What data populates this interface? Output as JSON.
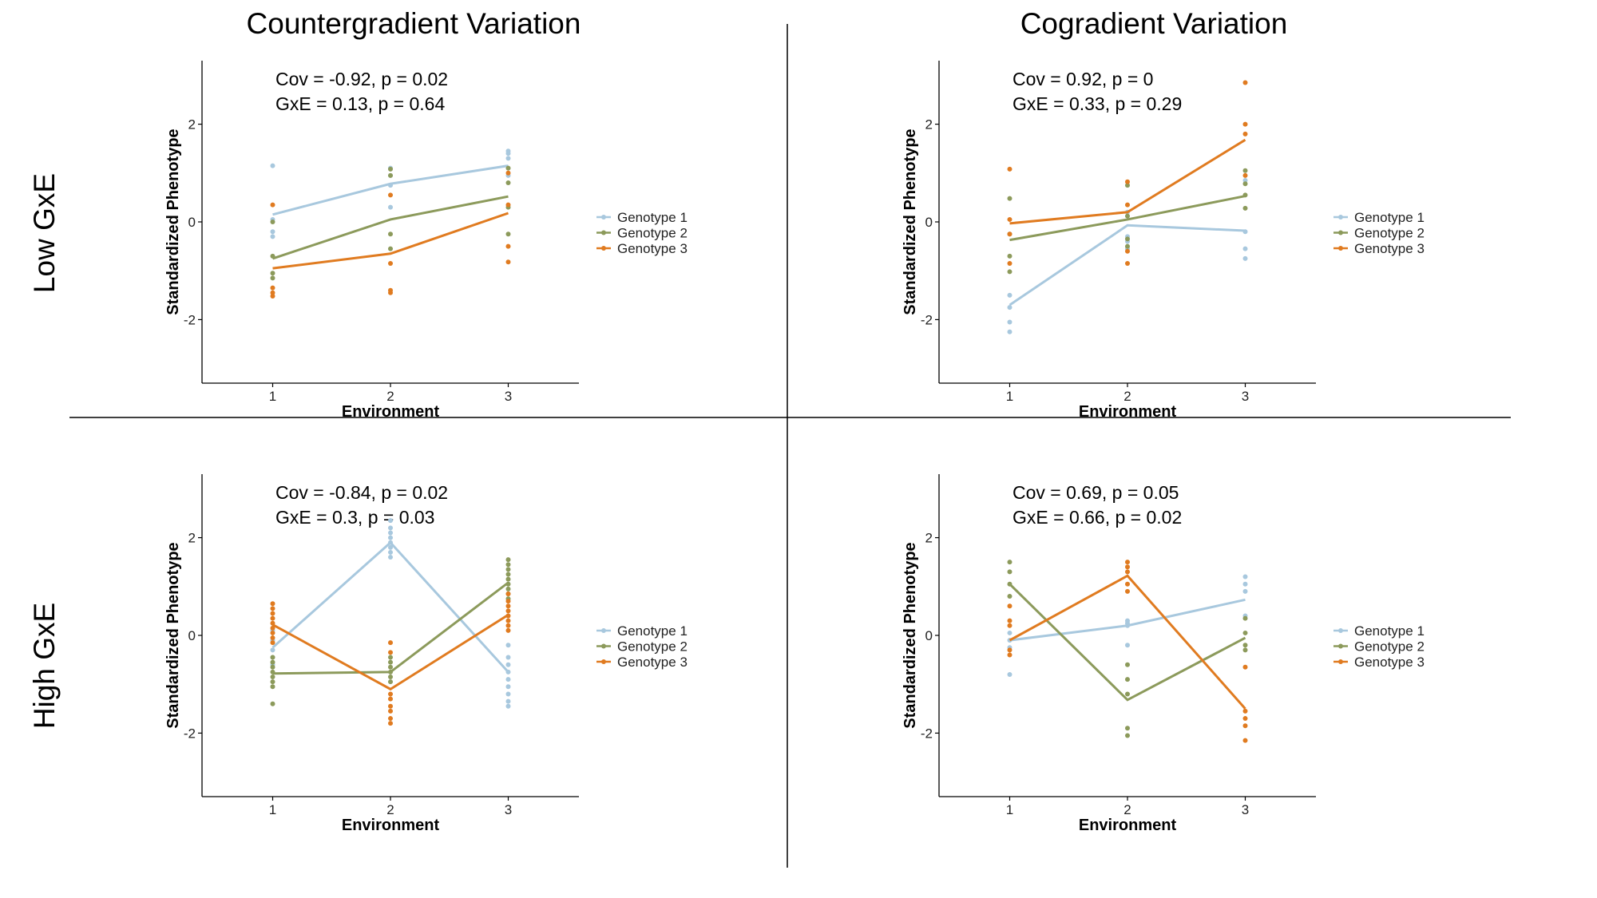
{
  "colors": {
    "genotype_1": "#a8c8de",
    "genotype_2": "#8c9a5b",
    "genotype_3": "#e07b20",
    "axis": "#000000",
    "divider": "#000000"
  },
  "column_titles": [
    "Countergradient Variation",
    "Cogradient Variation"
  ],
  "row_labels": [
    "Low GxE",
    "High GxE"
  ],
  "chart_data": [
    {
      "type": "line",
      "title": "",
      "column": "Countergradient Variation",
      "row": "Low GxE",
      "stats": [
        "Cov = -0.92, p = 0.02",
        "GxE = 0.13, p = 0.64"
      ],
      "xlabel": "Environment",
      "ylabel": "Standardized Phenotype",
      "x": [
        1,
        2,
        3
      ],
      "xticks": [
        "1",
        "2",
        "3"
      ],
      "xlim": [
        0.4,
        3.6
      ],
      "ylim": [
        -3.3,
        3.3
      ],
      "yticks": [
        -2,
        0,
        2
      ],
      "ytick_labels": [
        "-2",
        "0",
        "2"
      ],
      "legend": [
        "Genotype 1",
        "Genotype 2",
        "Genotype 3"
      ],
      "legend_position": "right",
      "series": [
        {
          "name": "Genotype 1",
          "color_key": "genotype_1",
          "values": [
            0.15,
            0.78,
            1.15
          ],
          "points": [
            [
              1,
              1.15
            ],
            [
              1,
              0.05
            ],
            [
              1,
              -0.2
            ],
            [
              1,
              -0.3
            ],
            [
              2,
              1.1
            ],
            [
              2,
              0.95
            ],
            [
              2,
              0.75
            ],
            [
              2,
              0.3
            ],
            [
              3,
              1.45
            ],
            [
              3,
              1.4
            ],
            [
              3,
              1.3
            ],
            [
              3,
              0.95
            ]
          ]
        },
        {
          "name": "Genotype 2",
          "color_key": "genotype_2",
          "values": [
            -0.75,
            0.05,
            0.52
          ],
          "points": [
            [
              1,
              0.0
            ],
            [
              1,
              -0.7
            ],
            [
              1,
              -1.05
            ],
            [
              1,
              -1.15
            ],
            [
              2,
              1.08
            ],
            [
              2,
              0.95
            ],
            [
              2,
              -0.25
            ],
            [
              2,
              -0.55
            ],
            [
              3,
              1.1
            ],
            [
              3,
              0.8
            ],
            [
              3,
              0.3
            ],
            [
              3,
              -0.25
            ]
          ]
        },
        {
          "name": "Genotype 3",
          "color_key": "genotype_3",
          "values": [
            -0.95,
            -0.65,
            0.18
          ],
          "points": [
            [
              1,
              0.35
            ],
            [
              1,
              -1.35
            ],
            [
              1,
              -1.45
            ],
            [
              1,
              -1.52
            ],
            [
              2,
              0.55
            ],
            [
              2,
              -0.85
            ],
            [
              2,
              -1.4
            ],
            [
              2,
              -1.45
            ],
            [
              3,
              1.0
            ],
            [
              3,
              0.35
            ],
            [
              3,
              -0.5
            ],
            [
              3,
              -0.82
            ]
          ]
        }
      ]
    },
    {
      "type": "line",
      "title": "",
      "column": "Cogradient Variation",
      "row": "Low GxE",
      "stats": [
        "Cov = 0.92, p = 0",
        "GxE = 0.33, p = 0.29"
      ],
      "xlabel": "Environment",
      "ylabel": "Standardized Phenotype",
      "x": [
        1,
        2,
        3
      ],
      "xticks": [
        "1",
        "2",
        "3"
      ],
      "xlim": [
        0.4,
        3.6
      ],
      "ylim": [
        -3.3,
        3.3
      ],
      "yticks": [
        -2,
        0,
        2
      ],
      "ytick_labels": [
        "-2",
        "0",
        "2"
      ],
      "legend": [
        "Genotype 1",
        "Genotype 2",
        "Genotype 3"
      ],
      "legend_position": "right",
      "series": [
        {
          "name": "Genotype 1",
          "color_key": "genotype_1",
          "values": [
            -1.7,
            -0.07,
            -0.18
          ],
          "points": [
            [
              1,
              -1.5
            ],
            [
              1,
              -1.75
            ],
            [
              1,
              -2.05
            ],
            [
              1,
              -2.25
            ],
            [
              2,
              0.2
            ],
            [
              2,
              -0.3
            ],
            [
              2,
              -0.4
            ],
            [
              2,
              -0.55
            ],
            [
              3,
              0.85
            ],
            [
              3,
              -0.2
            ],
            [
              3,
              -0.55
            ],
            [
              3,
              -0.75
            ]
          ]
        },
        {
          "name": "Genotype 2",
          "color_key": "genotype_2",
          "values": [
            -0.37,
            0.05,
            0.53
          ],
          "points": [
            [
              1,
              0.48
            ],
            [
              1,
              -0.25
            ],
            [
              1,
              -0.7
            ],
            [
              1,
              -1.02
            ],
            [
              2,
              0.75
            ],
            [
              2,
              0.12
            ],
            [
              2,
              -0.35
            ],
            [
              2,
              -0.5
            ],
            [
              3,
              1.05
            ],
            [
              3,
              0.78
            ],
            [
              3,
              0.55
            ],
            [
              3,
              0.28
            ]
          ]
        },
        {
          "name": "Genotype 3",
          "color_key": "genotype_3",
          "values": [
            -0.03,
            0.2,
            1.68
          ],
          "points": [
            [
              1,
              1.08
            ],
            [
              1,
              0.05
            ],
            [
              1,
              -0.25
            ],
            [
              1,
              -0.85
            ],
            [
              2,
              0.82
            ],
            [
              2,
              0.35
            ],
            [
              2,
              -0.6
            ],
            [
              2,
              -0.85
            ],
            [
              3,
              2.85
            ],
            [
              3,
              2.0
            ],
            [
              3,
              1.8
            ],
            [
              3,
              0.95
            ]
          ]
        }
      ]
    },
    {
      "type": "line",
      "title": "",
      "column": "Countergradient Variation",
      "row": "High GxE",
      "stats": [
        "Cov = -0.84, p = 0.02",
        "GxE = 0.3, p = 0.03"
      ],
      "xlabel": "Environment",
      "ylabel": "Standardized Phenotype",
      "x": [
        1,
        2,
        3
      ],
      "xticks": [
        "1",
        "2",
        "3"
      ],
      "xlim": [
        0.4,
        3.6
      ],
      "ylim": [
        -3.3,
        3.3
      ],
      "yticks": [
        -2,
        0,
        2
      ],
      "ytick_labels": [
        "-2",
        "0",
        "2"
      ],
      "legend": [
        "Genotype 1",
        "Genotype 2",
        "Genotype 3"
      ],
      "legend_position": "right",
      "series": [
        {
          "name": "Genotype 1",
          "color_key": "genotype_1",
          "values": [
            -0.25,
            1.9,
            -0.75
          ],
          "points": [
            [
              1,
              0.1
            ],
            [
              1,
              -0.1
            ],
            [
              1,
              -0.3
            ],
            [
              1,
              -0.45
            ],
            [
              1,
              -0.6
            ],
            [
              2,
              2.35
            ],
            [
              2,
              2.2
            ],
            [
              2,
              2.1
            ],
            [
              2,
              2.0
            ],
            [
              2,
              1.9
            ],
            [
              2,
              1.8
            ],
            [
              2,
              1.7
            ],
            [
              2,
              1.6
            ],
            [
              3,
              -0.2
            ],
            [
              3,
              -0.45
            ],
            [
              3,
              -0.6
            ],
            [
              3,
              -0.75
            ],
            [
              3,
              -0.9
            ],
            [
              3,
              -1.05
            ],
            [
              3,
              -1.2
            ],
            [
              3,
              -1.35
            ],
            [
              3,
              -1.45
            ]
          ]
        },
        {
          "name": "Genotype 2",
          "color_key": "genotype_2",
          "values": [
            -0.78,
            -0.75,
            1.08
          ],
          "points": [
            [
              1,
              -0.45
            ],
            [
              1,
              -0.55
            ],
            [
              1,
              -0.65
            ],
            [
              1,
              -0.75
            ],
            [
              1,
              -0.85
            ],
            [
              1,
              -0.95
            ],
            [
              1,
              -1.05
            ],
            [
              1,
              -1.4
            ],
            [
              2,
              -0.45
            ],
            [
              2,
              -0.55
            ],
            [
              2,
              -0.65
            ],
            [
              2,
              -0.75
            ],
            [
              2,
              -0.85
            ],
            [
              2,
              -0.95
            ],
            [
              3,
              1.55
            ],
            [
              3,
              1.45
            ],
            [
              3,
              1.35
            ],
            [
              3,
              1.25
            ],
            [
              3,
              1.15
            ],
            [
              3,
              1.05
            ],
            [
              3,
              0.95
            ],
            [
              3,
              0.85
            ],
            [
              3,
              0.75
            ]
          ]
        },
        {
          "name": "Genotype 3",
          "color_key": "genotype_3",
          "values": [
            0.22,
            -1.1,
            0.42
          ],
          "points": [
            [
              1,
              0.65
            ],
            [
              1,
              0.55
            ],
            [
              1,
              0.45
            ],
            [
              1,
              0.35
            ],
            [
              1,
              0.25
            ],
            [
              1,
              0.15
            ],
            [
              1,
              0.05
            ],
            [
              1,
              -0.05
            ],
            [
              1,
              -0.15
            ],
            [
              2,
              -0.15
            ],
            [
              2,
              -0.35
            ],
            [
              2,
              -1.2
            ],
            [
              2,
              -1.3
            ],
            [
              2,
              -1.45
            ],
            [
              2,
              -1.55
            ],
            [
              2,
              -1.7
            ],
            [
              2,
              -1.8
            ],
            [
              3,
              0.85
            ],
            [
              3,
              0.7
            ],
            [
              3,
              0.6
            ],
            [
              3,
              0.5
            ],
            [
              3,
              0.4
            ],
            [
              3,
              0.3
            ],
            [
              3,
              0.2
            ],
            [
              3,
              0.1
            ]
          ]
        }
      ]
    },
    {
      "type": "line",
      "title": "",
      "column": "Cogradient Variation",
      "row": "High GxE",
      "stats": [
        "Cov = 0.69, p = 0.05",
        "GxE = 0.66, p = 0.02"
      ],
      "xlabel": "Environment",
      "ylabel": "Standardized Phenotype",
      "x": [
        1,
        2,
        3
      ],
      "xticks": [
        "1",
        "2",
        "3"
      ],
      "xlim": [
        0.4,
        3.6
      ],
      "ylim": [
        -3.3,
        3.3
      ],
      "yticks": [
        -2,
        0,
        2
      ],
      "ytick_labels": [
        "-2",
        "0",
        "2"
      ],
      "legend": [
        "Genotype 1",
        "Genotype 2",
        "Genotype 3"
      ],
      "legend_position": "right",
      "series": [
        {
          "name": "Genotype 1",
          "color_key": "genotype_1",
          "values": [
            -0.1,
            0.2,
            0.73
          ],
          "points": [
            [
              1,
              0.05
            ],
            [
              1,
              -0.1
            ],
            [
              1,
              -0.25
            ],
            [
              1,
              -0.8
            ],
            [
              2,
              0.3
            ],
            [
              2,
              0.25
            ],
            [
              2,
              0.2
            ],
            [
              2,
              -0.2
            ],
            [
              3,
              1.2
            ],
            [
              3,
              1.05
            ],
            [
              3,
              0.9
            ],
            [
              3,
              0.4
            ]
          ]
        },
        {
          "name": "Genotype 2",
          "color_key": "genotype_2",
          "values": [
            1.05,
            -1.32,
            -0.05
          ],
          "points": [
            [
              1,
              1.5
            ],
            [
              1,
              1.3
            ],
            [
              1,
              1.05
            ],
            [
              1,
              0.8
            ],
            [
              2,
              -0.6
            ],
            [
              2,
              -0.9
            ],
            [
              2,
              -1.2
            ],
            [
              2,
              -1.9
            ],
            [
              2,
              -2.05
            ],
            [
              3,
              0.35
            ],
            [
              3,
              0.05
            ],
            [
              3,
              -0.2
            ],
            [
              3,
              -0.3
            ]
          ]
        },
        {
          "name": "Genotype 3",
          "color_key": "genotype_3",
          "values": [
            -0.1,
            1.22,
            -1.5
          ],
          "points": [
            [
              1,
              0.6
            ],
            [
              1,
              0.3
            ],
            [
              1,
              0.2
            ],
            [
              1,
              -0.3
            ],
            [
              1,
              -0.4
            ],
            [
              2,
              1.5
            ],
            [
              2,
              1.4
            ],
            [
              2,
              1.3
            ],
            [
              2,
              1.05
            ],
            [
              2,
              0.9
            ],
            [
              3,
              -0.65
            ],
            [
              3,
              -1.55
            ],
            [
              3,
              -1.7
            ],
            [
              3,
              -1.85
            ],
            [
              3,
              -2.15
            ]
          ]
        }
      ]
    }
  ]
}
